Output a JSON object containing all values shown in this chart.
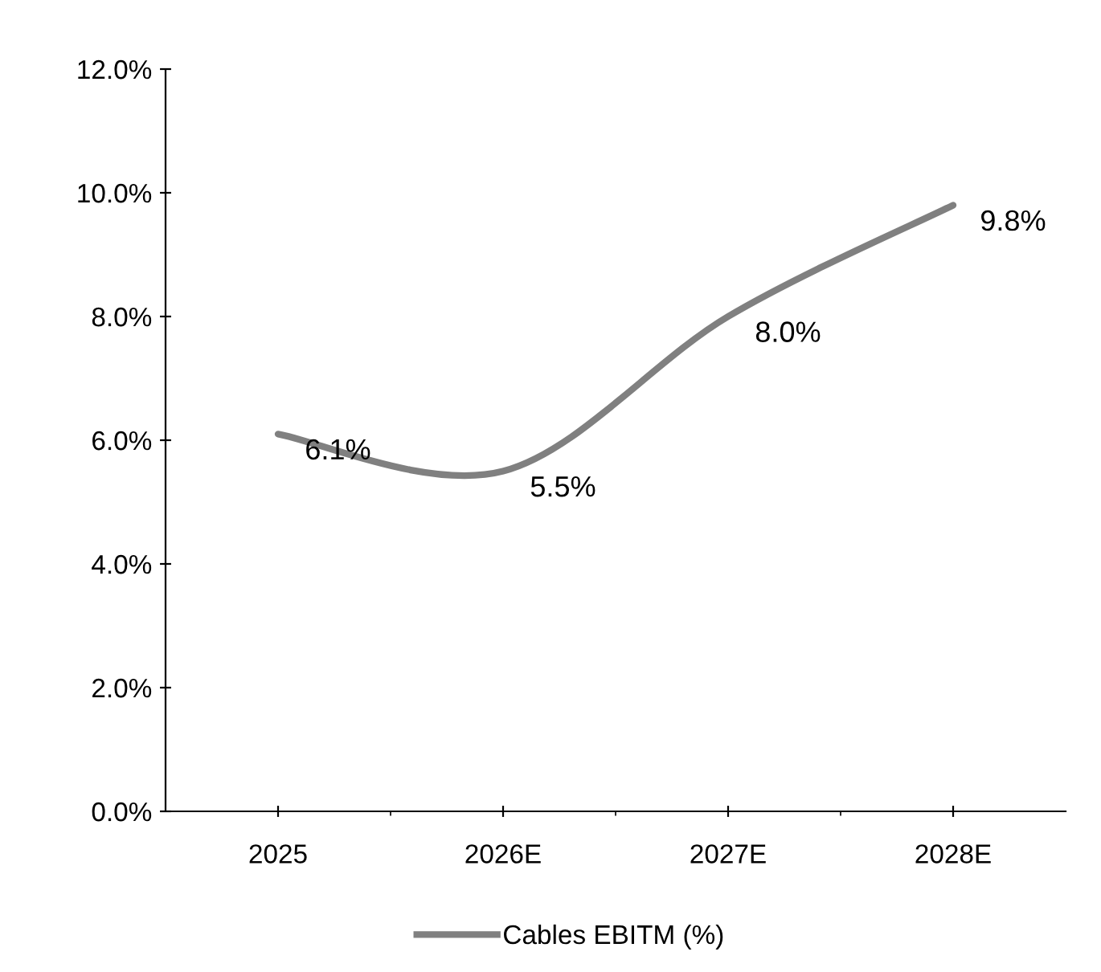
{
  "chart_data": {
    "type": "line",
    "categories": [
      "2025",
      "2026E",
      "2027E",
      "2028E"
    ],
    "series": [
      {
        "name": "Cables EBITM (%)",
        "color": "#808080",
        "values": [
          6.1,
          5.5,
          8.0,
          9.8
        ]
      }
    ],
    "value_labels": [
      "6.1%",
      "5.5%",
      "8.0%",
      "9.8%"
    ],
    "ylim": [
      0,
      12
    ],
    "yticks": [
      {
        "value": 0,
        "label": "0.0%"
      },
      {
        "value": 2,
        "label": "2.0%"
      },
      {
        "value": 4,
        "label": "4.0%"
      },
      {
        "value": 6,
        "label": "6.0%"
      },
      {
        "value": 8,
        "label": "8.0%"
      },
      {
        "value": 10,
        "label": "10.0%"
      },
      {
        "value": 12,
        "label": "12.0%"
      }
    ],
    "grid": false,
    "legend": "bottom",
    "marker": "none",
    "line_style": "solid"
  }
}
